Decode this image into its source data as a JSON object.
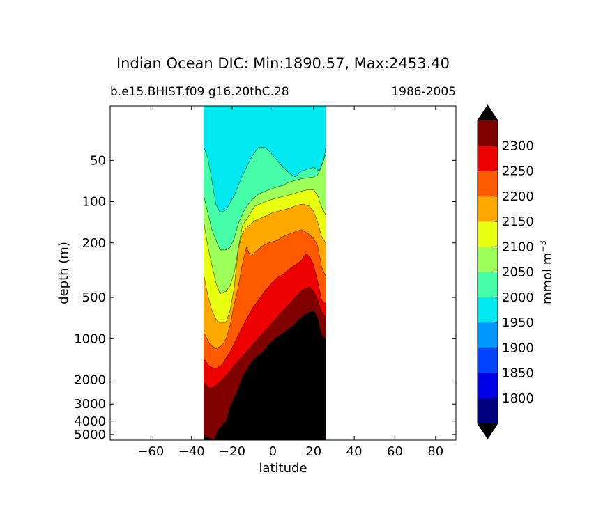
{
  "chart_data": {
    "type": "contourf",
    "title": "Indian Ocean DIC: Min:1890.57, Max:2453.40",
    "subtitle_left": "b.e15.BHIST.f09 g16.20thC.28",
    "subtitle_right": "1986-2005",
    "xlabel": "latitude",
    "ylabel": "depth (m)",
    "xlim": [
      -80,
      90
    ],
    "ylim": [
      20,
      5500
    ],
    "xticks": [
      -60,
      -40,
      -20,
      0,
      20,
      40,
      60,
      80
    ],
    "xtick_labels": [
      "−60",
      "−40",
      "−20",
      "0",
      "20",
      "40",
      "60",
      "80"
    ],
    "yticks": [
      50,
      100,
      200,
      500,
      1000,
      2000,
      3000,
      4000,
      5000
    ],
    "ytick_labels": [
      "50",
      "100",
      "200",
      "500",
      "1000",
      "2000",
      "3000",
      "4000",
      "5000"
    ],
    "colorbar": {
      "label_main": "mmol m",
      "label_sup": "−3",
      "levels": [
        1750,
        1800,
        1850,
        1900,
        1950,
        2000,
        2050,
        2100,
        2150,
        2200,
        2250,
        2300,
        2350
      ],
      "tick_values": [
        1800,
        1850,
        1900,
        1950,
        2000,
        2050,
        2100,
        2150,
        2200,
        2250,
        2300
      ],
      "colors": [
        "#000080",
        "#0000e6",
        "#0044ff",
        "#0096ff",
        "#00e8f0",
        "#44ffa8",
        "#9cff5a",
        "#e8ff10",
        "#ffa800",
        "#ff5a00",
        "#ee0000",
        "#800000"
      ],
      "under_color": "#000000",
      "over_color": "#000000",
      "extend": "both"
    },
    "land_color": "#000000",
    "ocean_lat_range": [
      -34,
      26
    ],
    "depth_contours": [
      {
        "value": 2000,
        "points": [
          [
            -34,
            40
          ],
          [
            -32,
            48
          ],
          [
            -30,
            70
          ],
          [
            -28,
            105
          ],
          [
            -26,
            120
          ],
          [
            -23,
            115
          ],
          [
            -19,
            90
          ],
          [
            -16,
            70
          ],
          [
            -13,
            56
          ],
          [
            -10,
            46
          ],
          [
            -7,
            40
          ],
          [
            -4,
            40
          ],
          [
            -1,
            44
          ],
          [
            2,
            50
          ],
          [
            5,
            56
          ],
          [
            8,
            62
          ],
          [
            11,
            66
          ],
          [
            14,
            60
          ],
          [
            17,
            58
          ],
          [
            20,
            56
          ],
          [
            23,
            60
          ],
          [
            25,
            50
          ],
          [
            26,
            40
          ]
        ]
      },
      {
        "value": 2050,
        "points": [
          [
            -34,
            90
          ],
          [
            -32,
            120
          ],
          [
            -30,
            160
          ],
          [
            -28,
            190
          ],
          [
            -26,
            225
          ],
          [
            -23,
            225
          ],
          [
            -21,
            215
          ],
          [
            -19,
            185
          ],
          [
            -17,
            145
          ],
          [
            -14,
            115
          ],
          [
            -11,
            99
          ],
          [
            -7,
            88
          ],
          [
            -3,
            83
          ],
          [
            1,
            79
          ],
          [
            5,
            76
          ],
          [
            8,
            72
          ],
          [
            11,
            70
          ],
          [
            14,
            68
          ],
          [
            17,
            67
          ],
          [
            20,
            66
          ],
          [
            22,
            64
          ],
          [
            24,
            54
          ],
          [
            26,
            45
          ]
        ]
      },
      {
        "value": 2100,
        "points": [
          [
            -34,
            140
          ],
          [
            -32,
            210
          ],
          [
            -30,
            290
          ],
          [
            -28,
            390
          ],
          [
            -26,
            470
          ],
          [
            -23,
            450
          ],
          [
            -21,
            410
          ],
          [
            -19,
            330
          ],
          [
            -17,
            220
          ],
          [
            -15,
            150
          ],
          [
            -12,
            128
          ],
          [
            -9,
            108
          ],
          [
            -5,
            102
          ],
          [
            -2,
            98
          ],
          [
            2,
            94
          ],
          [
            6,
            91
          ],
          [
            10,
            88
          ],
          [
            14,
            84
          ],
          [
            17,
            82
          ],
          [
            20,
            82
          ],
          [
            22,
            90
          ],
          [
            24,
            110
          ],
          [
            26,
            125
          ]
        ]
      },
      {
        "value": 2150,
        "points": [
          [
            -34,
            340
          ],
          [
            -32,
            480
          ],
          [
            -30,
            620
          ],
          [
            -28,
            720
          ],
          [
            -26,
            770
          ],
          [
            -23,
            760
          ],
          [
            -21,
            620
          ],
          [
            -19,
            420
          ],
          [
            -17,
            220
          ],
          [
            -15,
            170
          ],
          [
            -12,
            150
          ],
          [
            -9,
            138
          ],
          [
            -6,
            132
          ],
          [
            -3,
            126
          ],
          [
            0,
            120
          ],
          [
            4,
            116
          ],
          [
            8,
            112
          ],
          [
            12,
            106
          ],
          [
            15,
            104
          ],
          [
            18,
            108
          ],
          [
            20,
            118
          ],
          [
            22,
            140
          ],
          [
            24,
            180
          ],
          [
            26,
            200
          ]
        ]
      },
      {
        "value": 2200,
        "points": [
          [
            -34,
            900
          ],
          [
            -31,
            1100
          ],
          [
            -28,
            1180
          ],
          [
            -25,
            1120
          ],
          [
            -23,
            1000
          ],
          [
            -21,
            800
          ],
          [
            -19,
            560
          ],
          [
            -17,
            420
          ],
          [
            -15,
            285
          ],
          [
            -13,
            215
          ],
          [
            -11,
            250
          ],
          [
            -8,
            230
          ],
          [
            -5,
            210
          ],
          [
            -2,
            200
          ],
          [
            2,
            192
          ],
          [
            5,
            180
          ],
          [
            8,
            172
          ],
          [
            11,
            166
          ],
          [
            14,
            160
          ],
          [
            17,
            170
          ],
          [
            20,
            185
          ],
          [
            22,
            210
          ],
          [
            24,
            300
          ],
          [
            26,
            350
          ]
        ]
      },
      {
        "value": 2250,
        "points": [
          [
            -34,
            1400
          ],
          [
            -31,
            1600
          ],
          [
            -28,
            1650
          ],
          [
            -25,
            1550
          ],
          [
            -23,
            1380
          ],
          [
            -21,
            1250
          ],
          [
            -19,
            1080
          ],
          [
            -16,
            880
          ],
          [
            -13,
            720
          ],
          [
            -10,
            600
          ],
          [
            -7,
            520
          ],
          [
            -4,
            450
          ],
          [
            -1,
            400
          ],
          [
            2,
            360
          ],
          [
            5,
            340
          ],
          [
            8,
            310
          ],
          [
            11,
            290
          ],
          [
            14,
            270
          ],
          [
            16,
            240
          ],
          [
            18,
            250
          ],
          [
            20,
            290
          ],
          [
            22,
            380
          ],
          [
            24,
            520
          ],
          [
            26,
            560
          ]
        ]
      },
      {
        "value": 2300,
        "points": [
          [
            -34,
            2100
          ],
          [
            -31,
            2300
          ],
          [
            -28,
            2200
          ],
          [
            -25,
            2000
          ],
          [
            -22,
            1800
          ],
          [
            -18,
            1500
          ],
          [
            -14,
            1300
          ],
          [
            -10,
            1100
          ],
          [
            -6,
            950
          ],
          [
            -2,
            820
          ],
          [
            2,
            700
          ],
          [
            6,
            600
          ],
          [
            10,
            520
          ],
          [
            13,
            460
          ],
          [
            16,
            430
          ],
          [
            18,
            420
          ],
          [
            20,
            450
          ],
          [
            22,
            520
          ],
          [
            24,
            640
          ],
          [
            26,
            700
          ]
        ]
      }
    ],
    "bathymetry": [
      [
        -34,
        4980
      ],
      [
        -33,
        5200
      ],
      [
        -31,
        5300
      ],
      [
        -29,
        5500
      ],
      [
        -27,
        4600
      ],
      [
        -25,
        4300
      ],
      [
        -23,
        4000
      ],
      [
        -21,
        3100
      ],
      [
        -19,
        2700
      ],
      [
        -17,
        2300
      ],
      [
        -15,
        1900
      ],
      [
        -13,
        1700
      ],
      [
        -11,
        1500
      ],
      [
        -8,
        1350
      ],
      [
        -5,
        1250
      ],
      [
        -2,
        1100
      ],
      [
        1,
        1000
      ],
      [
        4,
        930
      ],
      [
        7,
        860
      ],
      [
        10,
        800
      ],
      [
        13,
        720
      ],
      [
        16,
        660
      ],
      [
        18,
        640
      ],
      [
        20,
        620
      ],
      [
        22,
        700
      ],
      [
        24,
        940
      ],
      [
        26,
        1000
      ]
    ]
  }
}
